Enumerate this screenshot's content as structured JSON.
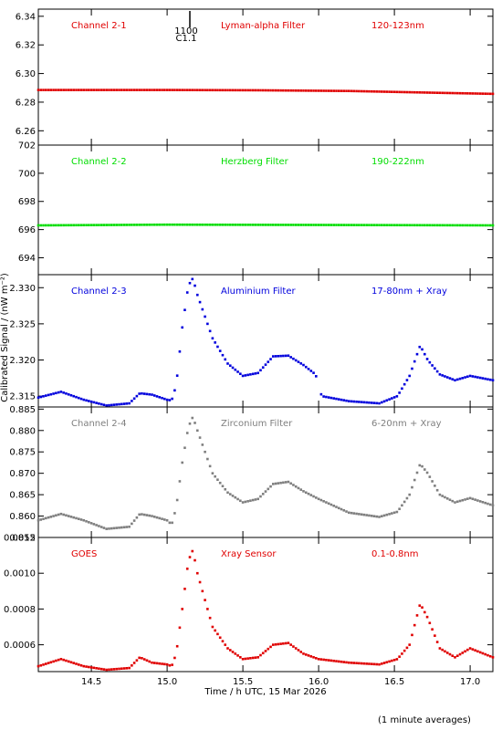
{
  "chart_data": {
    "type": "scatter",
    "xlabel": "Time / h UTC, 15 Mar 2026",
    "ylabel": "Calibrated Signal / (nW m⁻²)",
    "footnote": "(1 minute averages)",
    "xlim": [
      14.15,
      17.15
    ],
    "x_ticks": [
      14.5,
      15.0,
      15.5,
      16.0,
      16.5,
      17.0
    ],
    "x_tick_labels": [
      "14.5",
      "15.0",
      "15.5",
      "16.0",
      "16.5",
      "17.0"
    ],
    "flare_marker": {
      "x": 15.15,
      "top_label": "1100",
      "bottom_label": "C1.1"
    },
    "panels": [
      {
        "channel": "Channel 2-1",
        "filter": "Lyman-alpha Filter",
        "band": "120-123nm",
        "color": "#e00000",
        "ylim": [
          6.25,
          6.345
        ],
        "y_ticks": [
          6.26,
          6.28,
          6.3,
          6.32,
          6.34
        ],
        "y_tick_labels": [
          "6.26",
          "6.28",
          "6.30",
          "6.32",
          "6.34"
        ],
        "keypoints": [
          [
            14.15,
            6.2885
          ],
          [
            15.0,
            6.2885
          ],
          [
            15.6,
            6.2883
          ],
          [
            16.2,
            6.2878
          ],
          [
            16.8,
            6.2865
          ],
          [
            17.15,
            6.2858
          ]
        ]
      },
      {
        "channel": "Channel 2-2",
        "filter": "Herzberg Filter",
        "band": "190-222nm",
        "color": "#00dd00",
        "ylim": [
          692.8,
          702.0
        ],
        "y_ticks": [
          694,
          696,
          698,
          700,
          702
        ],
        "y_tick_labels": [
          "694",
          "696",
          "698",
          "700",
          "702"
        ],
        "keypoints": [
          [
            14.15,
            696.3
          ],
          [
            15.0,
            696.35
          ],
          [
            16.0,
            696.33
          ],
          [
            17.15,
            696.3
          ]
        ]
      },
      {
        "channel": "Channel 2-3",
        "filter": "Aluminium Filter",
        "band": "17-80nm + Xray",
        "color": "#0000dd",
        "ylim": [
          2.3135,
          2.3318
        ],
        "y_ticks": [
          2.315,
          2.32,
          2.325,
          2.33
        ],
        "y_tick_labels": [
          "2.315",
          "2.320",
          "2.325",
          "2.330"
        ],
        "gap": [
          15.99,
          16.01
        ],
        "keypoints": [
          [
            14.15,
            2.3148
          ],
          [
            14.3,
            2.3156
          ],
          [
            14.45,
            2.3145
          ],
          [
            14.6,
            2.3137
          ],
          [
            14.75,
            2.314
          ],
          [
            14.82,
            2.3154
          ],
          [
            14.9,
            2.3152
          ],
          [
            15.0,
            2.3145
          ],
          [
            15.03,
            2.3144
          ],
          [
            15.06,
            2.3165
          ],
          [
            15.1,
            2.3245
          ],
          [
            15.14,
            2.3303
          ],
          [
            15.17,
            2.3313
          ],
          [
            15.2,
            2.329
          ],
          [
            15.3,
            2.323
          ],
          [
            15.4,
            2.3195
          ],
          [
            15.5,
            2.3178
          ],
          [
            15.6,
            2.3182
          ],
          [
            15.7,
            2.3205
          ],
          [
            15.8,
            2.3206
          ],
          [
            15.9,
            2.3193
          ],
          [
            15.98,
            2.318
          ],
          [
            16.02,
            2.315
          ],
          [
            16.2,
            2.3143
          ],
          [
            16.4,
            2.314
          ],
          [
            16.52,
            2.315
          ],
          [
            16.6,
            2.3178
          ],
          [
            16.67,
            2.322
          ],
          [
            16.72,
            2.32
          ],
          [
            16.8,
            2.318
          ],
          [
            16.9,
            2.3172
          ],
          [
            17.0,
            2.3178
          ],
          [
            17.15,
            2.3172
          ]
        ]
      },
      {
        "channel": "Channel 2-4",
        "filter": "Zirconium Filter",
        "band": "6-20nm + Xray",
        "color": "#7f7f7f",
        "ylim": [
          0.855,
          0.8855
        ],
        "y_ticks": [
          0.855,
          0.86,
          0.865,
          0.87,
          0.875,
          0.88,
          0.885
        ],
        "y_tick_labels": [
          "0.855",
          "0.860",
          "0.865",
          "0.870",
          "0.875",
          "0.880",
          "0.885"
        ],
        "keypoints": [
          [
            14.15,
            0.859
          ],
          [
            14.3,
            0.8605
          ],
          [
            14.45,
            0.859
          ],
          [
            14.6,
            0.857
          ],
          [
            14.75,
            0.8575
          ],
          [
            14.82,
            0.8605
          ],
          [
            14.9,
            0.86
          ],
          [
            15.0,
            0.859
          ],
          [
            15.03,
            0.858
          ],
          [
            15.06,
            0.862
          ],
          [
            15.1,
            0.8725
          ],
          [
            15.14,
            0.8808
          ],
          [
            15.17,
            0.8832
          ],
          [
            15.2,
            0.88
          ],
          [
            15.3,
            0.87
          ],
          [
            15.4,
            0.8655
          ],
          [
            15.5,
            0.8632
          ],
          [
            15.6,
            0.864
          ],
          [
            15.7,
            0.8675
          ],
          [
            15.8,
            0.868
          ],
          [
            15.9,
            0.8658
          ],
          [
            16.0,
            0.864
          ],
          [
            16.2,
            0.8608
          ],
          [
            16.4,
            0.8598
          ],
          [
            16.52,
            0.861
          ],
          [
            16.6,
            0.865
          ],
          [
            16.67,
            0.8722
          ],
          [
            16.72,
            0.87
          ],
          [
            16.8,
            0.865
          ],
          [
            16.9,
            0.8632
          ],
          [
            17.0,
            0.8642
          ],
          [
            17.15,
            0.8625
          ]
        ]
      },
      {
        "channel": "GOES",
        "filter": "Xray Sensor",
        "band": "0.1-0.8nm",
        "color": "#e00000",
        "ylim": [
          0.00045,
          0.0012
        ],
        "y_ticks": [
          0.0006,
          0.0008,
          0.001,
          0.0012
        ],
        "y_tick_labels": [
          "0.0006",
          "0.0008",
          "0.0010",
          "0.0012"
        ],
        "keypoints": [
          [
            14.15,
            0.00048
          ],
          [
            14.3,
            0.00052
          ],
          [
            14.45,
            0.00048
          ],
          [
            14.6,
            0.00046
          ],
          [
            14.75,
            0.00047
          ],
          [
            14.82,
            0.00053
          ],
          [
            14.9,
            0.0005
          ],
          [
            15.0,
            0.00049
          ],
          [
            15.03,
            0.00048
          ],
          [
            15.06,
            0.00055
          ],
          [
            15.1,
            0.0008
          ],
          [
            15.14,
            0.00107
          ],
          [
            15.17,
            0.00113
          ],
          [
            15.2,
            0.001
          ],
          [
            15.3,
            0.0007
          ],
          [
            15.4,
            0.00058
          ],
          [
            15.5,
            0.00052
          ],
          [
            15.6,
            0.00053
          ],
          [
            15.7,
            0.0006
          ],
          [
            15.8,
            0.00061
          ],
          [
            15.9,
            0.00055
          ],
          [
            16.0,
            0.00052
          ],
          [
            16.2,
            0.0005
          ],
          [
            16.4,
            0.00049
          ],
          [
            16.52,
            0.00052
          ],
          [
            16.6,
            0.0006
          ],
          [
            16.67,
            0.00083
          ],
          [
            16.72,
            0.00075
          ],
          [
            16.8,
            0.00058
          ],
          [
            16.9,
            0.00053
          ],
          [
            17.0,
            0.00058
          ],
          [
            17.15,
            0.00053
          ]
        ]
      }
    ]
  }
}
